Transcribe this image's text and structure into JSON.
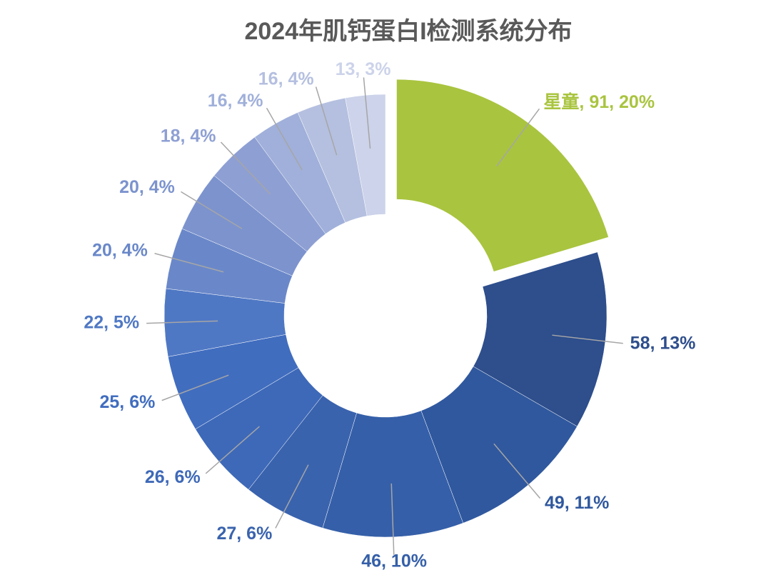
{
  "chart_data": {
    "type": "donut",
    "title": "2024年肌钙蛋白I检测系统分布",
    "values": [
      91,
      58,
      49,
      46,
      27,
      26,
      25,
      22,
      20,
      20,
      18,
      16,
      16,
      13
    ],
    "value_labels": [
      "星童, 91, 20%",
      "58, 13%",
      "49, 11%",
      "46, 10%",
      "27, 6%",
      "26, 6%",
      "25, 6%",
      "22, 5%",
      "20, 4%",
      "20, 4%",
      "18, 4%",
      "16, 4%",
      "16, 4%",
      "13, 3%"
    ],
    "colors": [
      "#a9c43f",
      "#2e4e8c",
      "#30589e",
      "#355fa8",
      "#3a63ae",
      "#3e69b8",
      "#416dbf",
      "#4f78c4",
      "#6a88c9",
      "#7c93ce",
      "#8e9fd3",
      "#a0b0da",
      "#b5c0e0",
      "#ccd3ea"
    ],
    "explode_index": 0
  }
}
